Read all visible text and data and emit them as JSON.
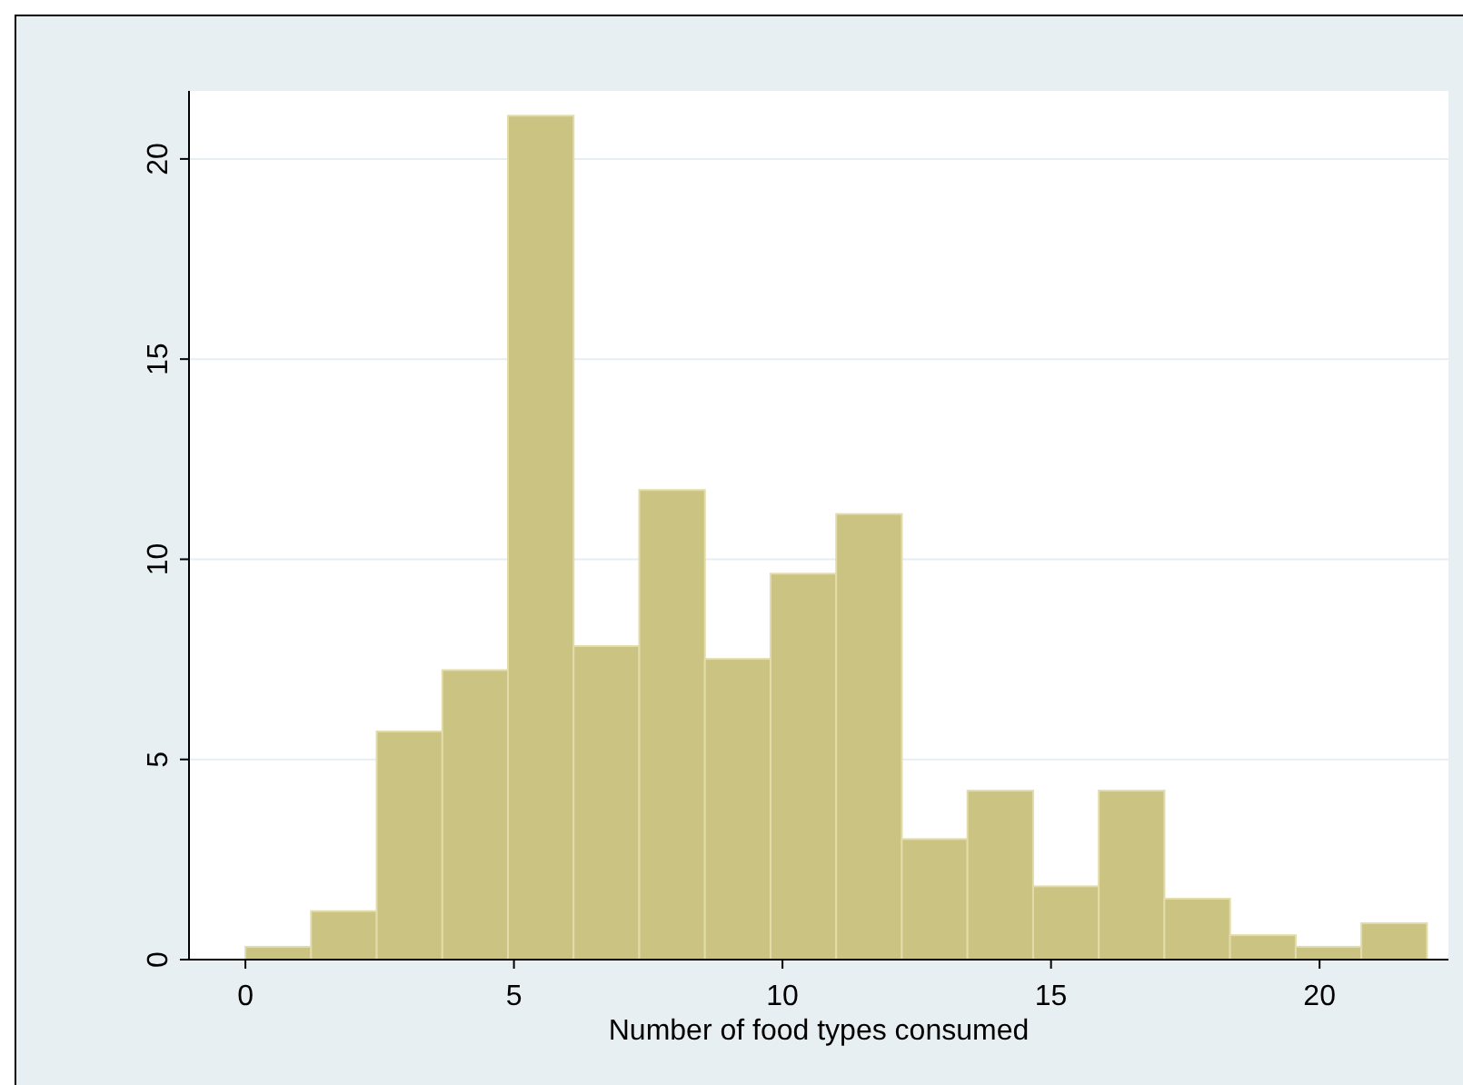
{
  "chart_data": {
    "type": "histogram",
    "xlabel": "Number of food types consumed",
    "bins": [
      0,
      1.2222,
      2.4444,
      3.6667,
      4.8889,
      6.1111,
      7.3333,
      8.5556,
      9.7778,
      11,
      12.2222,
      13.4444,
      14.6667,
      15.8889,
      17.1111,
      18.3333,
      19.5556,
      20.7778,
      22
    ],
    "values": [
      0.32,
      1.21,
      5.7,
      7.23,
      21.08,
      7.83,
      11.73,
      7.51,
      9.64,
      11.13,
      3.01,
      4.22,
      1.83,
      4.22,
      1.52,
      0.61,
      0.32,
      0.91
    ],
    "color": "#cbc382",
    "xlim": [
      -1.05,
      22.4
    ],
    "xticks": [
      0,
      5,
      10,
      15,
      20
    ],
    "ylim": [
      0,
      21.7
    ],
    "yticks": [
      0,
      5,
      10,
      15,
      20
    ],
    "grid": "y"
  }
}
